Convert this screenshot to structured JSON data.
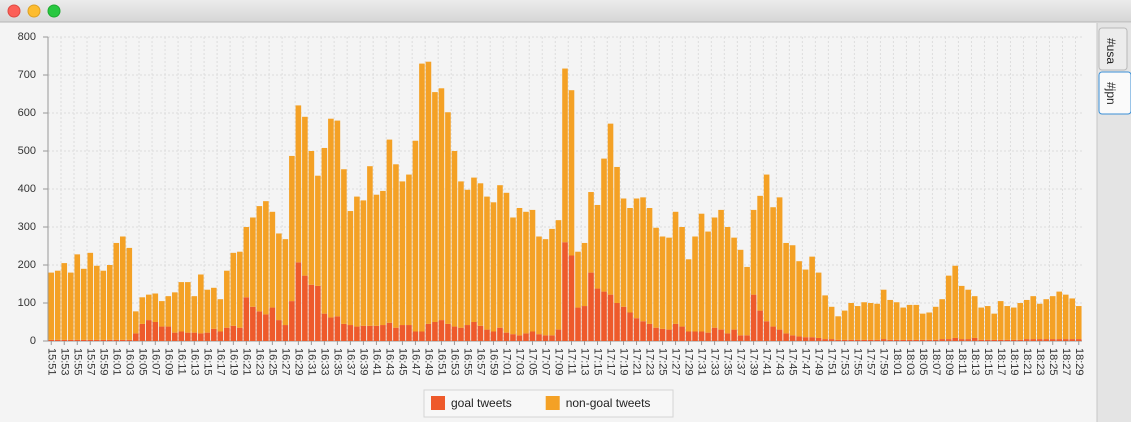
{
  "window": {
    "tabs": [
      "#usa",
      "#jpn"
    ],
    "selected_tab": 1
  },
  "chart_data": {
    "type": "stacked-bar",
    "categories": [
      "15:51",
      null,
      "15:53",
      null,
      "15:55",
      null,
      "15:57",
      null,
      "15:59",
      null,
      "16:01",
      null,
      "16:03",
      null,
      "16:05",
      null,
      "16:07",
      null,
      "16:09",
      null,
      "16:11",
      null,
      "16:13",
      null,
      "16:15",
      null,
      "16:17",
      null,
      "16:19",
      null,
      "16:21",
      null,
      "16:23",
      null,
      "16:25",
      null,
      "16:27",
      null,
      "16:29",
      null,
      "16:31",
      null,
      "16:33",
      null,
      "16:35",
      null,
      "16:37",
      null,
      "16:39",
      null,
      "16:41",
      null,
      "16:43",
      null,
      "16:45",
      null,
      "16:47",
      null,
      "16:49",
      null,
      "16:51",
      null,
      "16:53",
      null,
      "16:55",
      null,
      "16:57",
      null,
      "16:59",
      null,
      "17:01",
      null,
      "17:03",
      null,
      "17:05",
      null,
      "17:07",
      null,
      "17:09",
      null,
      "17:11",
      null,
      "17:13",
      null,
      "17:15",
      null,
      "17:17",
      null,
      "17:19",
      null,
      "17:21",
      null,
      "17:23",
      null,
      "17:25",
      null,
      "17:27",
      null,
      "17:29",
      null,
      "17:31",
      null,
      "17:33",
      null,
      "17:35",
      null,
      "17:37",
      null,
      "17:39",
      null,
      "17:41",
      null,
      "17:43",
      null,
      "17:45",
      null,
      "17:47",
      null,
      "17:49",
      null,
      "17:51",
      null,
      "17:53",
      null,
      "17:55",
      null,
      "17:57",
      null,
      "17:59",
      null,
      "18:01",
      null,
      "18:03",
      null,
      "18:05",
      null,
      "18:07",
      null,
      "18:09",
      null,
      "18:11",
      null,
      "18:13",
      null,
      "18:15",
      null,
      "18:17",
      null,
      "18:19",
      null,
      "18:21",
      null,
      "18:23",
      null,
      "18:25",
      null,
      "18:27",
      null,
      "18:29"
    ],
    "series": [
      {
        "name": "goal tweets",
        "color": "#ee5a2b",
        "values": [
          3,
          3,
          3,
          3,
          3,
          3,
          3,
          3,
          3,
          3,
          3,
          3,
          3,
          20,
          45,
          55,
          50,
          38,
          38,
          22,
          25,
          22,
          22,
          20,
          22,
          32,
          25,
          35,
          40,
          35,
          115,
          90,
          78,
          70,
          88,
          55,
          42,
          105,
          207,
          172,
          148,
          145,
          72,
          62,
          65,
          45,
          42,
          38,
          40,
          40,
          40,
          42,
          48,
          35,
          42,
          42,
          25,
          25,
          45,
          50,
          55,
          45,
          38,
          35,
          42,
          50,
          40,
          30,
          25,
          35,
          22,
          18,
          15,
          20,
          25,
          18,
          15,
          15,
          30,
          260,
          225,
          88,
          92,
          180,
          138,
          130,
          122,
          100,
          90,
          75,
          60,
          52,
          45,
          35,
          32,
          30,
          45,
          38,
          25,
          25,
          25,
          22,
          35,
          30,
          20,
          30,
          15,
          15,
          122,
          80,
          52,
          38,
          30,
          20,
          15,
          12,
          10,
          10,
          8,
          5,
          5,
          3,
          3,
          3,
          3,
          3,
          3,
          3,
          5,
          3,
          3,
          3,
          3,
          3,
          3,
          3,
          3,
          5,
          5,
          8,
          5,
          5,
          8,
          3,
          3,
          3,
          3,
          3,
          3,
          3,
          5,
          5,
          5,
          5,
          5,
          5,
          5,
          5,
          5
        ]
      },
      {
        "name": "non-goal tweets",
        "color": "#f4a125",
        "values": [
          177,
          182,
          202,
          177,
          225,
          187,
          229,
          195,
          182,
          197,
          255,
          272,
          242,
          58,
          70,
          67,
          75,
          67,
          80,
          106,
          130,
          133,
          96,
          155,
          113,
          108,
          85,
          150,
          192,
          200,
          185,
          235,
          277,
          298,
          252,
          228,
          226,
          382,
          413,
          418,
          352,
          290,
          436,
          523,
          515,
          407,
          300,
          342,
          330,
          420,
          345,
          353,
          482,
          430,
          378,
          396,
          502,
          705,
          690,
          605,
          610,
          557,
          462,
          385,
          356,
          380,
          375,
          350,
          340,
          375,
          368,
          307,
          335,
          320,
          320,
          257,
          253,
          280,
          288,
          457,
          435,
          147,
          166,
          212,
          220,
          350,
          450,
          358,
          285,
          275,
          315,
          326,
          305,
          263,
          243,
          242,
          295,
          262,
          190,
          250,
          310,
          266,
          290,
          315,
          280,
          242,
          225,
          180,
          223,
          302,
          386,
          314,
          348,
          238,
          237,
          198,
          178,
          212,
          172,
          115,
          85,
          62,
          77,
          97,
          89,
          99,
          97,
          95,
          130,
          105,
          99,
          85,
          92,
          92,
          69,
          72,
          87,
          105,
          167,
          190,
          140,
          130,
          110,
          85,
          89,
          69,
          102,
          89,
          85,
          97,
          103,
          113,
          93,
          105,
          113,
          125,
          117,
          107,
          87
        ]
      }
    ],
    "ylim": [
      0,
      800
    ],
    "yticks": [
      0,
      100,
      200,
      300,
      400,
      500,
      600,
      700,
      800
    ],
    "grid": true,
    "legend": "bottom"
  }
}
